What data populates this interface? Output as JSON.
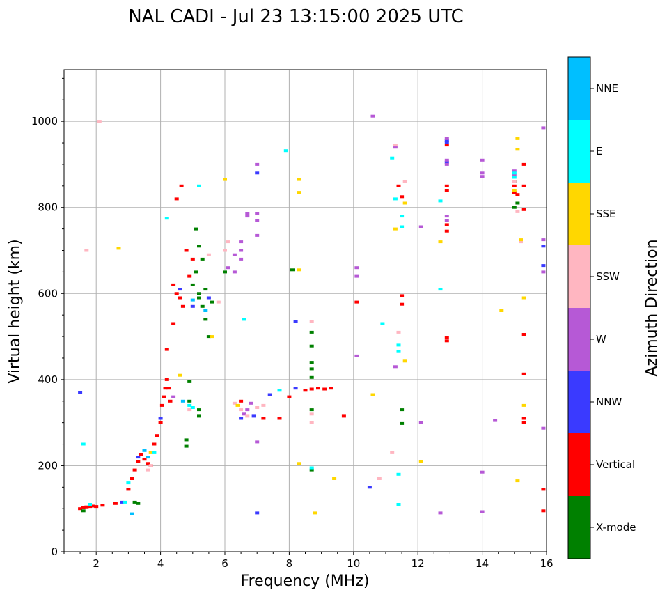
{
  "chart_data": {
    "type": "scatter",
    "title": "NAL CADI - Jul 23 13:15:00 2025 UTC",
    "xlabel": "Frequency (MHz)",
    "ylabel": "Virtual height (km)",
    "xlim": [
      1,
      16
    ],
    "ylim": [
      0,
      1120
    ],
    "xticks": [
      2,
      4,
      6,
      8,
      10,
      12,
      14,
      16
    ],
    "yticks": [
      0,
      200,
      400,
      600,
      800,
      1000
    ],
    "grid": true,
    "colorbar": {
      "label": "Azimuth Direction",
      "categories": [
        {
          "name": "X-mode",
          "color": "#008000"
        },
        {
          "name": "Vertical",
          "color": "#ff0000"
        },
        {
          "name": "NNW",
          "color": "#3a3aff"
        },
        {
          "name": "W",
          "color": "#b659d6"
        },
        {
          "name": "SSW",
          "color": "#ffb6c1"
        },
        {
          "name": "SSE",
          "color": "#ffd700"
        },
        {
          "name": "E",
          "color": "#00ffff"
        },
        {
          "name": "NNE",
          "color": "#00bfff"
        }
      ]
    },
    "series": [
      {
        "name": "Vertical",
        "points": [
          [
            1.5,
            100
          ],
          [
            1.6,
            102
          ],
          [
            1.7,
            104
          ],
          [
            1.8,
            105
          ],
          [
            1.9,
            106
          ],
          [
            2.0,
            105
          ],
          [
            2.2,
            108
          ],
          [
            2.6,
            112
          ],
          [
            3.0,
            145
          ],
          [
            3.1,
            170
          ],
          [
            3.2,
            190
          ],
          [
            3.3,
            210
          ],
          [
            3.4,
            225
          ],
          [
            3.5,
            215
          ],
          [
            3.6,
            205
          ],
          [
            3.7,
            200
          ],
          [
            3.8,
            250
          ],
          [
            3.9,
            270
          ],
          [
            4.0,
            300
          ],
          [
            4.05,
            340
          ],
          [
            4.1,
            360
          ],
          [
            4.15,
            380
          ],
          [
            4.2,
            400
          ],
          [
            4.3,
            350
          ],
          [
            4.4,
            620
          ],
          [
            4.5,
            600
          ],
          [
            4.6,
            590
          ],
          [
            4.7,
            570
          ],
          [
            4.8,
            700
          ],
          [
            4.9,
            640
          ],
          [
            5.0,
            680
          ],
          [
            4.5,
            820
          ],
          [
            4.65,
            850
          ],
          [
            4.4,
            530
          ],
          [
            4.2,
            470
          ],
          [
            4.25,
            380
          ],
          [
            8.5,
            375
          ],
          [
            8.7,
            378
          ],
          [
            8.9,
            380
          ],
          [
            9.1,
            378
          ],
          [
            9.3,
            380
          ],
          [
            9.7,
            315
          ],
          [
            10.1,
            580
          ],
          [
            11.5,
            595
          ],
          [
            11.5,
            575
          ],
          [
            11.4,
            850
          ],
          [
            11.5,
            825
          ],
          [
            12.9,
            760
          ],
          [
            12.9,
            745
          ],
          [
            12.9,
            945
          ],
          [
            12.9,
            850
          ],
          [
            12.9,
            840
          ],
          [
            12.9,
            490
          ],
          [
            12.9,
            497
          ],
          [
            15.0,
            850
          ],
          [
            15.0,
            835
          ],
          [
            15.1,
            830
          ],
          [
            15.3,
            900
          ],
          [
            15.3,
            850
          ],
          [
            15.3,
            795
          ],
          [
            15.3,
            505
          ],
          [
            15.3,
            413
          ],
          [
            15.3,
            310
          ],
          [
            15.3,
            300
          ],
          [
            15.9,
            145
          ],
          [
            15.9,
            95
          ],
          [
            7.2,
            310
          ],
          [
            7.7,
            310
          ],
          [
            8.0,
            360
          ],
          [
            6.5,
            350
          ]
        ]
      },
      {
        "name": "X-mode",
        "points": [
          [
            1.6,
            95
          ],
          [
            3.2,
            115
          ],
          [
            3.3,
            112
          ],
          [
            4.8,
            245
          ],
          [
            4.8,
            260
          ],
          [
            4.9,
            350
          ],
          [
            5.2,
            330
          ],
          [
            5.2,
            315
          ],
          [
            5.0,
            620
          ],
          [
            5.1,
            650
          ],
          [
            5.2,
            600
          ],
          [
            5.3,
            570
          ],
          [
            5.4,
            540
          ],
          [
            5.5,
            500
          ],
          [
            5.3,
            680
          ],
          [
            5.2,
            710
          ],
          [
            5.1,
            750
          ],
          [
            5.2,
            590
          ],
          [
            5.4,
            610
          ],
          [
            5.6,
            580
          ],
          [
            8.1,
            655
          ],
          [
            8.7,
            510
          ],
          [
            8.7,
            478
          ],
          [
            8.7,
            440
          ],
          [
            8.7,
            425
          ],
          [
            8.7,
            405
          ],
          [
            8.7,
            330
          ],
          [
            8.7,
            190
          ],
          [
            11.5,
            330
          ],
          [
            11.5,
            298
          ],
          [
            15.0,
            860
          ],
          [
            15.1,
            810
          ],
          [
            15.0,
            800
          ],
          [
            4.9,
            395
          ],
          [
            6.0,
            650
          ]
        ]
      },
      {
        "name": "NNW",
        "points": [
          [
            1.5,
            370
          ],
          [
            2.8,
            115
          ],
          [
            3.3,
            220
          ],
          [
            4.0,
            310
          ],
          [
            4.6,
            610
          ],
          [
            5.5,
            590
          ],
          [
            6.5,
            310
          ],
          [
            6.9,
            315
          ],
          [
            7.0,
            880
          ],
          [
            7.0,
            90
          ],
          [
            8.2,
            535
          ],
          [
            8.2,
            380
          ],
          [
            10.5,
            150
          ],
          [
            12.9,
            955
          ],
          [
            12.9,
            950
          ],
          [
            12.9,
            905
          ],
          [
            15.9,
            710
          ],
          [
            15.9,
            665
          ],
          [
            5.0,
            570
          ],
          [
            7.4,
            365
          ]
        ]
      },
      {
        "name": "W",
        "points": [
          [
            6.1,
            660
          ],
          [
            6.3,
            690
          ],
          [
            6.5,
            700
          ],
          [
            6.5,
            720
          ],
          [
            6.5,
            680
          ],
          [
            6.3,
            650
          ],
          [
            6.7,
            330
          ],
          [
            6.8,
            345
          ],
          [
            6.6,
            320
          ],
          [
            7.0,
            900
          ],
          [
            7.0,
            785
          ],
          [
            7.0,
            770
          ],
          [
            7.0,
            735
          ],
          [
            7.0,
            255
          ],
          [
            10.1,
            660
          ],
          [
            10.1,
            640
          ],
          [
            10.1,
            455
          ],
          [
            10.6,
            1012
          ],
          [
            11.3,
            940
          ],
          [
            11.3,
            430
          ],
          [
            12.1,
            755
          ],
          [
            12.1,
            300
          ],
          [
            12.7,
            90
          ],
          [
            12.9,
            960
          ],
          [
            12.9,
            910
          ],
          [
            12.9,
            900
          ],
          [
            12.9,
            780
          ],
          [
            12.9,
            770
          ],
          [
            14.0,
            910
          ],
          [
            14.0,
            880
          ],
          [
            14.0,
            872
          ],
          [
            14.0,
            185
          ],
          [
            14.0,
            93
          ],
          [
            14.4,
            305
          ],
          [
            15.0,
            885
          ],
          [
            15.0,
            875
          ],
          [
            15.9,
            985
          ],
          [
            15.9,
            725
          ],
          [
            15.9,
            650
          ],
          [
            15.9,
            287
          ],
          [
            6.7,
            785
          ],
          [
            6.7,
            780
          ],
          [
            4.4,
            360
          ]
        ]
      },
      {
        "name": "SSW",
        "points": [
          [
            2.1,
            1000
          ],
          [
            1.7,
            700
          ],
          [
            3.6,
            190
          ],
          [
            3.7,
            200
          ],
          [
            4.9,
            330
          ],
          [
            5.8,
            580
          ],
          [
            6.0,
            700
          ],
          [
            6.1,
            720
          ],
          [
            6.3,
            345
          ],
          [
            6.5,
            330
          ],
          [
            6.7,
            315
          ],
          [
            7.0,
            335
          ],
          [
            7.2,
            340
          ],
          [
            8.7,
            320
          ],
          [
            8.7,
            300
          ],
          [
            8.7,
            535
          ],
          [
            10.8,
            170
          ],
          [
            11.2,
            230
          ],
          [
            11.3,
            945
          ],
          [
            11.6,
            860
          ],
          [
            11.4,
            510
          ],
          [
            15.0,
            860
          ],
          [
            15.1,
            790
          ],
          [
            15.2,
            720
          ],
          [
            5.5,
            690
          ]
        ]
      },
      {
        "name": "SSE",
        "points": [
          [
            2.7,
            705
          ],
          [
            3.7,
            230
          ],
          [
            4.6,
            410
          ],
          [
            6.0,
            865
          ],
          [
            6.4,
            340
          ],
          [
            8.3,
            865
          ],
          [
            8.3,
            835
          ],
          [
            8.3,
            655
          ],
          [
            8.8,
            90
          ],
          [
            8.3,
            205
          ],
          [
            9.4,
            170
          ],
          [
            10.6,
            365
          ],
          [
            11.3,
            750
          ],
          [
            11.6,
            443
          ],
          [
            11.6,
            810
          ],
          [
            12.1,
            210
          ],
          [
            12.7,
            720
          ],
          [
            14.6,
            560
          ],
          [
            15.1,
            960
          ],
          [
            15.1,
            935
          ],
          [
            15.2,
            725
          ],
          [
            15.3,
            590
          ],
          [
            15.3,
            340
          ],
          [
            15.1,
            165
          ],
          [
            15.0,
            840
          ],
          [
            5.6,
            500
          ]
        ]
      },
      {
        "name": "E",
        "points": [
          [
            1.6,
            250
          ],
          [
            1.8,
            110
          ],
          [
            2.9,
            115
          ],
          [
            3.0,
            160
          ],
          [
            3.8,
            230
          ],
          [
            4.2,
            775
          ],
          [
            4.9,
            340
          ],
          [
            5.0,
            335
          ],
          [
            5.2,
            850
          ],
          [
            6.6,
            540
          ],
          [
            7.7,
            375
          ],
          [
            7.9,
            932
          ],
          [
            8.7,
            195
          ],
          [
            10.9,
            530
          ],
          [
            11.2,
            915
          ],
          [
            11.3,
            820
          ],
          [
            11.4,
            480
          ],
          [
            11.4,
            465
          ],
          [
            11.4,
            180
          ],
          [
            11.4,
            110
          ],
          [
            11.5,
            780
          ],
          [
            11.5,
            755
          ],
          [
            12.7,
            610
          ],
          [
            12.7,
            815
          ],
          [
            15.0,
            870
          ],
          [
            15.0,
            880
          ]
        ]
      },
      {
        "name": "NNE",
        "points": [
          [
            3.1,
            88
          ],
          [
            3.5,
            235
          ],
          [
            3.6,
            220
          ],
          [
            5.0,
            585
          ],
          [
            5.4,
            560
          ],
          [
            4.7,
            350
          ]
        ]
      }
    ]
  }
}
